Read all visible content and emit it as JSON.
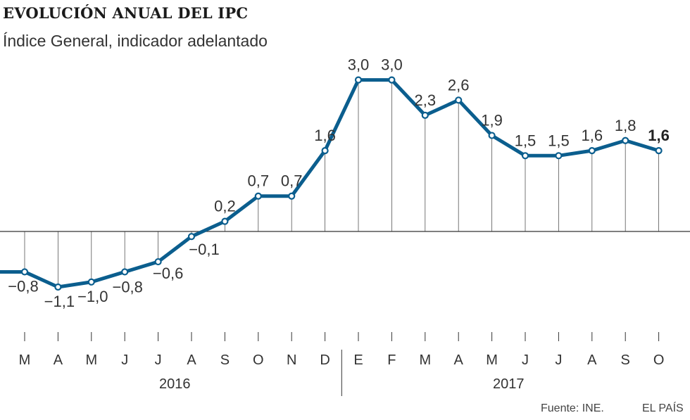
{
  "chart_data": {
    "type": "line",
    "title": "EVOLUCIÓN ANUAL DEL IPC",
    "subtitle": "Índice General, indicador adelantado",
    "x": [
      "M",
      "A",
      "M",
      "J",
      "J",
      "A",
      "S",
      "O",
      "N",
      "D",
      "E",
      "F",
      "M",
      "A",
      "M",
      "J",
      "J",
      "A",
      "S",
      "O"
    ],
    "years": [
      {
        "label": "2016",
        "months": 10
      },
      {
        "label": "2017",
        "months": 10
      }
    ],
    "series": [
      {
        "values": [
          -0.8,
          -1.1,
          -1.0,
          -0.8,
          -0.6,
          -0.1,
          0.2,
          0.7,
          0.7,
          1.6,
          3.0,
          3.0,
          2.3,
          2.6,
          1.9,
          1.5,
          1.5,
          1.6,
          1.8,
          1.6
        ],
        "labels": [
          "−0,8",
          "−1,1",
          "−1,0",
          "−0,8",
          "−0,6",
          "−0,1",
          "0,2",
          "0,7",
          "0,7",
          "1,6",
          "3,0",
          "3,0",
          "2,3",
          "2,6",
          "1,9",
          "1,5",
          "1,5",
          "1,6",
          "1,8",
          "1,6"
        ],
        "lead_in_value": -0.8,
        "highlight_last": true
      }
    ],
    "baseline": 0,
    "ylim": [
      -1.4,
      3.3
    ],
    "grid": false,
    "colors": {
      "line": "#0b5e8e",
      "text": "#333333",
      "axis": "#333333"
    }
  },
  "footer": {
    "source": "Fuente: INE.",
    "brand": "EL PAÍS"
  }
}
